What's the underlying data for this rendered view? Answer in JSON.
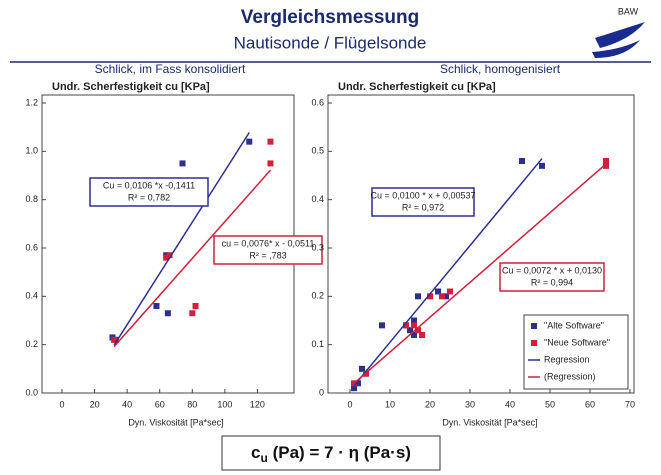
{
  "header": {
    "title": "Vergleichsmessung",
    "subtitle": "Nautisonde / Flügelsonde",
    "logo": "BAW",
    "captions": [
      "Schlick, im Fass konsolidiert",
      "Schlick, homogenisiert"
    ]
  },
  "formula": {
    "symbol": "c",
    "sub": "u",
    "rest": " (Pa) = 7 · η (Pa·s)"
  },
  "chart_data": [
    {
      "type": "scatter",
      "y_label": "Undr. Scherfestigkeit cu [KPa]",
      "x_label": "Dyn. Viskosität [Pa*sec]",
      "xlim": [
        0,
        140
      ],
      "xticks": [
        0,
        20,
        40,
        60,
        80,
        100,
        120
      ],
      "ylim": [
        0,
        1.2
      ],
      "yticks": [
        {
          "value": 0,
          "label": "0.0"
        },
        0.2,
        0.4,
        0.6,
        0.8,
        {
          "value": 1,
          "label": "1.0"
        },
        1.2
      ],
      "series": [
        {
          "color": "#2b2f8f",
          "x": [
            31,
            33,
            58,
            64,
            65,
            74,
            115
          ],
          "values": [
            0.23,
            0.22,
            0.36,
            0.57,
            0.33,
            0.95,
            1.04
          ]
        },
        {
          "color": "#d0203a",
          "x": [
            32,
            64,
            66,
            80,
            82,
            128,
            128
          ],
          "values": [
            0.22,
            0.56,
            0.57,
            0.33,
            0.36,
            0.95,
            1.04
          ]
        },
        {
          "type": "line",
          "color": "#2b2f8f",
          "x": [
            32,
            115
          ],
          "values": [
            0.198,
            1.078
          ]
        },
        {
          "type": "line",
          "color": "#d0203a",
          "x": [
            32,
            128
          ],
          "values": [
            0.192,
            0.922
          ]
        }
      ],
      "annotations": [
        {
          "lines": [
            "Cu = 0,0106 *x -0,1411",
            "R² = 0,782"
          ],
          "color": "#2b2f8f"
        },
        {
          "lines": [
            "cu = 0,0076* x - 0,0511",
            "R² = ,783"
          ],
          "color": "#d0203a"
        }
      ]
    },
    {
      "type": "scatter",
      "y_label": "Undr. Scherfestigkeit cu [KPa]",
      "x_label": "Dyn. Viskosität [Pa*sec]",
      "xlim": [
        0,
        70
      ],
      "xticks": [
        0,
        10,
        20,
        30,
        40,
        50,
        60,
        70
      ],
      "ylim": [
        0,
        0.6
      ],
      "yticks": [
        0,
        0.1,
        0.2,
        0.3,
        0.4,
        0.5,
        0.6
      ],
      "legend": "lower right",
      "series": [
        {
          "name": "\"Alte Software\"",
          "color": "#2b2f8f",
          "x": [
            1,
            2,
            3,
            4,
            8,
            14,
            15,
            16,
            16,
            17,
            22,
            24,
            43,
            48
          ],
          "values": [
            0.01,
            0.02,
            0.05,
            0.04,
            0.14,
            0.14,
            0.13,
            0.12,
            0.15,
            0.2,
            0.21,
            0.2,
            0.48,
            0.47
          ]
        },
        {
          "name": "\"Neue Software\"",
          "color": "#d0203a",
          "x": [
            1,
            4,
            14,
            16,
            17,
            18,
            20,
            23,
            25,
            64,
            64
          ],
          "values": [
            0.02,
            0.04,
            0.14,
            0.14,
            0.13,
            0.12,
            0.2,
            0.2,
            0.21,
            0.47,
            0.48
          ]
        },
        {
          "name": "Regression",
          "type": "line",
          "color": "#2b2f8f",
          "x": [
            1,
            48
          ],
          "values": [
            0.015,
            0.485
          ]
        },
        {
          "name": "(Regression)",
          "type": "line",
          "color": "#d0203a",
          "x": [
            1,
            64
          ],
          "values": [
            0.02,
            0.474
          ]
        }
      ],
      "annotations": [
        {
          "lines": [
            "Cu = 0,0100 * x + 0,00537",
            "R² = 0,972"
          ],
          "color": "#2b2f8f"
        },
        {
          "lines": [
            "Cu = 0,0072 * x + 0,0130",
            "R² = 0,994"
          ],
          "color": "#d0203a"
        }
      ]
    }
  ]
}
